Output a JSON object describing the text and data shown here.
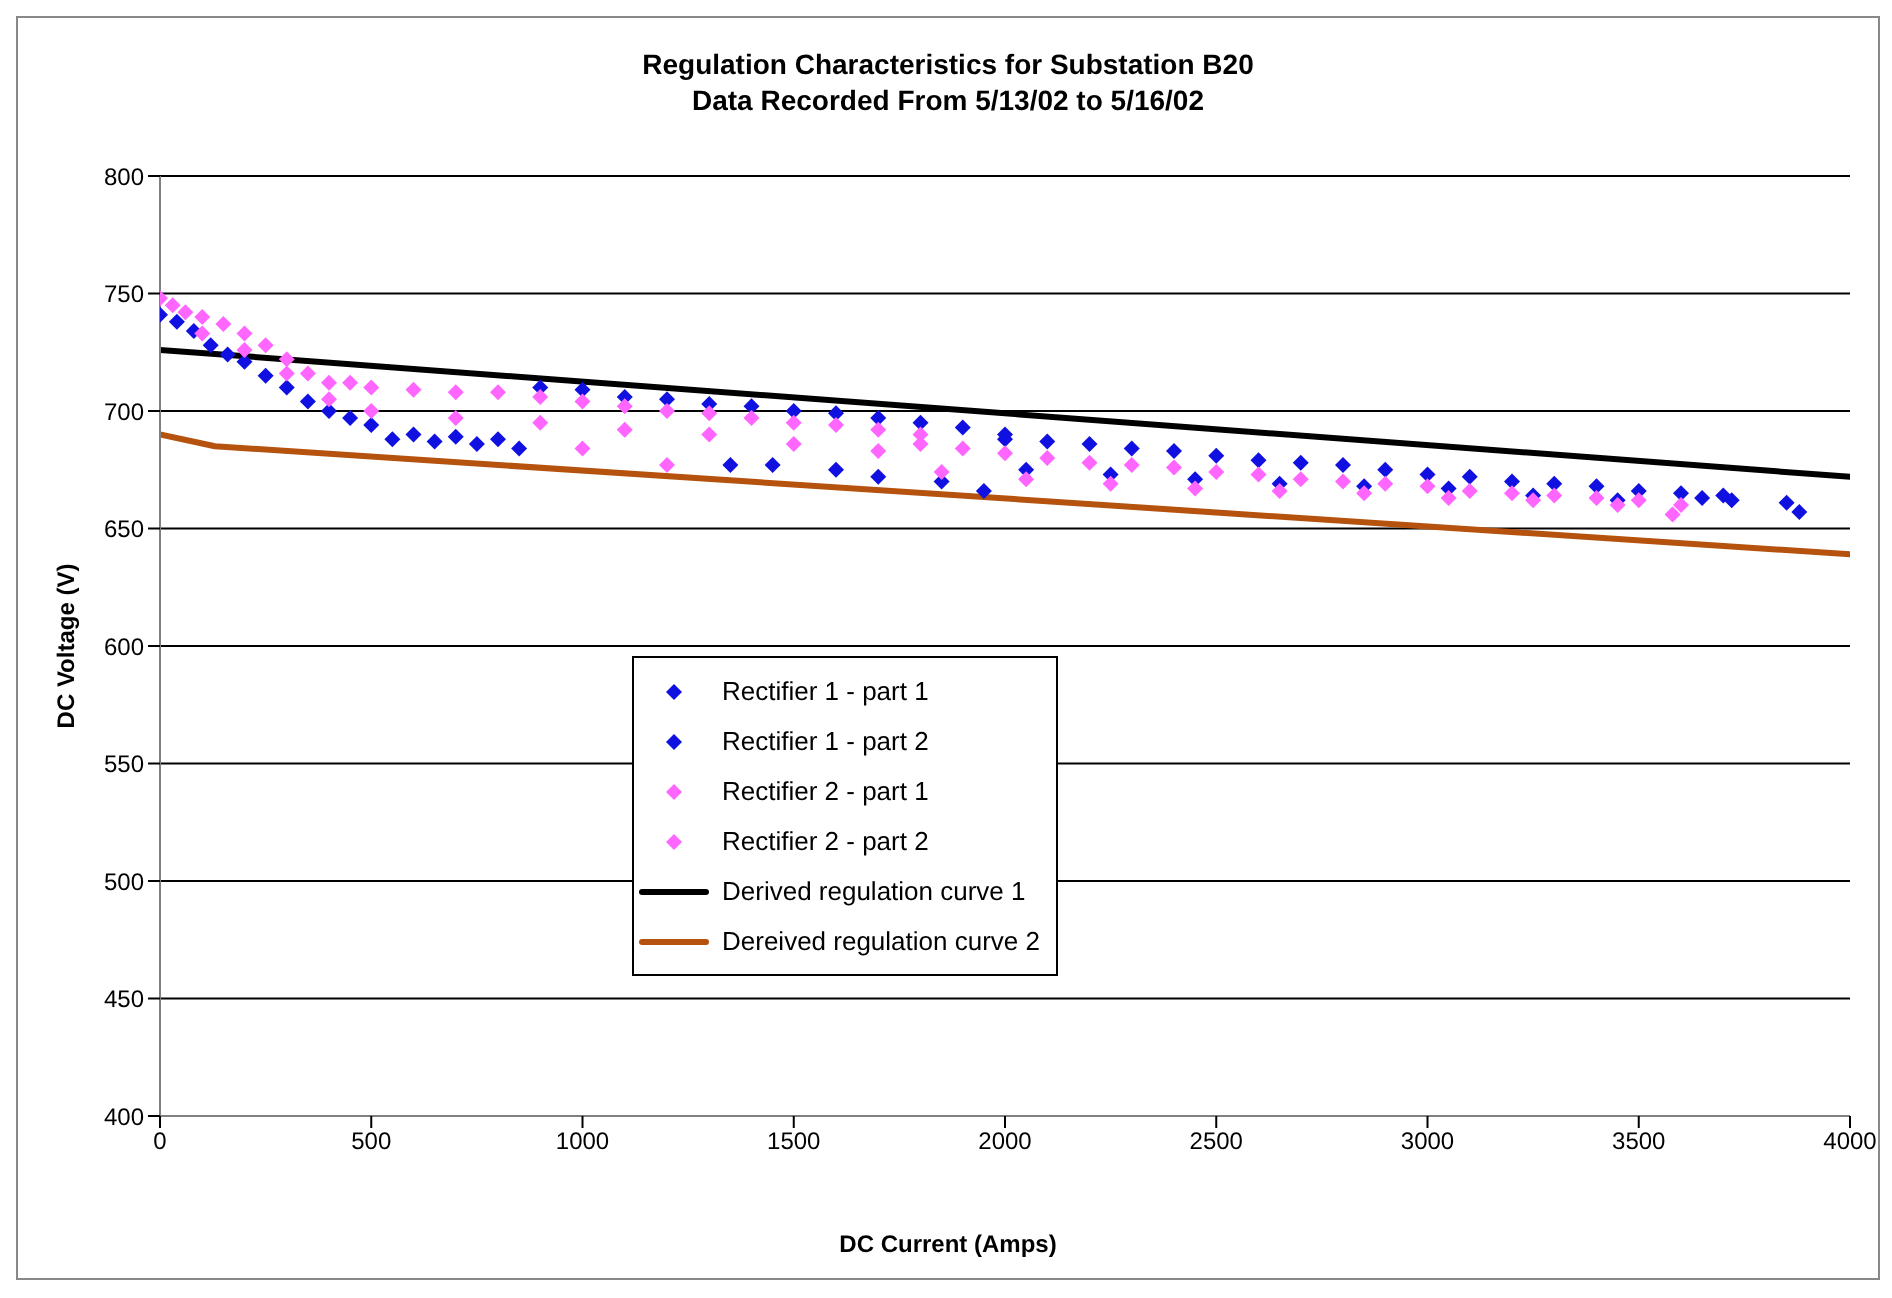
{
  "chart_data": {
    "type": "scatter",
    "title": "Regulation Characteristics for Substation B20",
    "subtitle": "Data Recorded From 5/13/02 to 5/16/02",
    "xlabel": "DC Current (Amps)",
    "ylabel": "DC Voltage (V)",
    "xlim": [
      0,
      4000
    ],
    "xticks": [
      0,
      500,
      1000,
      1500,
      2000,
      2500,
      3000,
      3500,
      4000
    ],
    "ylim": [
      400,
      800
    ],
    "yticks": [
      400,
      450,
      500,
      550,
      600,
      650,
      700,
      750,
      800
    ],
    "grid": "y",
    "legend": "bottom left",
    "marker": "diamond",
    "series": [
      {
        "name": "Rectifier 1 - part 1",
        "color": "#1010e0",
        "x": [
          0,
          40,
          80,
          120,
          160,
          200,
          250,
          300,
          350,
          400,
          450,
          500,
          600,
          700,
          800,
          900,
          1000,
          1100,
          1200,
          1300,
          1400,
          1500,
          1600,
          1700,
          1800,
          1900,
          2000,
          550,
          650,
          750,
          850,
          1350,
          1450,
          1600,
          1700,
          1850,
          1950
        ],
        "values": [
          741,
          738,
          734,
          728,
          724,
          721,
          715,
          710,
          704,
          700,
          697,
          694,
          690,
          689,
          688,
          710,
          709,
          706,
          705,
          703,
          702,
          700,
          699,
          697,
          695,
          693,
          690,
          688,
          687,
          686,
          684,
          677,
          677,
          675,
          672,
          670,
          666
        ]
      },
      {
        "name": "Rectifier 1 - part 2",
        "color": "#1010e0",
        "x": [
          2000,
          2100,
          2200,
          2300,
          2400,
          2500,
          2600,
          2700,
          2800,
          2900,
          3000,
          3100,
          3200,
          3300,
          3400,
          3500,
          3600,
          3650,
          3700,
          3720,
          3850,
          3880,
          2050,
          2250,
          2450,
          2650,
          2850,
          3050,
          3250,
          3450
        ],
        "values": [
          688,
          687,
          686,
          684,
          683,
          681,
          679,
          678,
          677,
          675,
          673,
          672,
          670,
          669,
          668,
          666,
          665,
          663,
          664,
          662,
          661,
          657,
          675,
          673,
          671,
          669,
          668,
          667,
          664,
          662
        ]
      },
      {
        "name": "Rectifier 2 - part 1",
        "color": "#ff66ff",
        "x": [
          0,
          30,
          60,
          100,
          150,
          200,
          250,
          300,
          350,
          400,
          450,
          500,
          600,
          700,
          800,
          900,
          1000,
          1100,
          1200,
          1300,
          1400,
          1500,
          1600,
          1700,
          1800,
          100,
          200,
          300,
          400,
          500,
          700,
          900,
          1100,
          1300,
          1500,
          1700,
          1000,
          1200
        ],
        "values": [
          748,
          745,
          742,
          740,
          737,
          733,
          728,
          722,
          716,
          712,
          712,
          710,
          709,
          708,
          708,
          706,
          704,
          702,
          700,
          699,
          697,
          695,
          694,
          692,
          690,
          733,
          726,
          716,
          705,
          700,
          697,
          695,
          692,
          690,
          686,
          683,
          684,
          677
        ]
      },
      {
        "name": "Rectifier 2 - part 2",
        "color": "#ff66ff",
        "x": [
          1800,
          1900,
          2000,
          2100,
          2200,
          2300,
          2400,
          2500,
          2600,
          2700,
          2800,
          2900,
          3000,
          3100,
          3200,
          3300,
          3400,
          3500,
          3600,
          1850,
          2050,
          2250,
          2450,
          2650,
          2850,
          3050,
          3250,
          3450,
          3580
        ],
        "values": [
          686,
          684,
          682,
          680,
          678,
          677,
          676,
          674,
          673,
          671,
          670,
          669,
          668,
          666,
          665,
          664,
          663,
          662,
          660,
          674,
          671,
          669,
          667,
          666,
          665,
          663,
          662,
          660,
          656
        ]
      },
      {
        "name": "Derived regulation curve 1",
        "type": "line",
        "marker": "none",
        "color": "#000000",
        "x": [
          0,
          4000
        ],
        "values": [
          726,
          672
        ]
      },
      {
        "name": "Dereived regulation curve 2",
        "type": "line",
        "marker": "none",
        "color": "#b5520e",
        "x": [
          0,
          130,
          4000
        ],
        "values": [
          690,
          685,
          639
        ]
      }
    ]
  }
}
